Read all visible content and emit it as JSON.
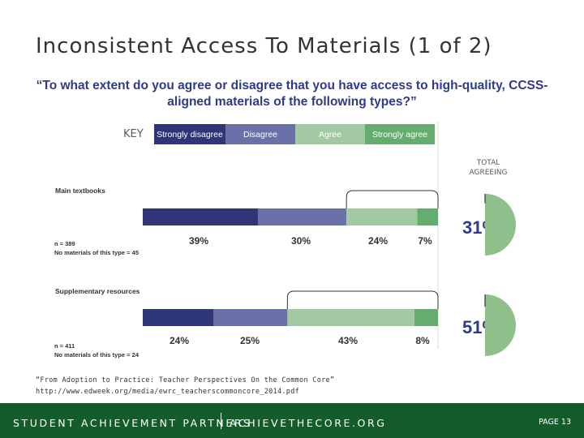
{
  "slide": {
    "title": "Inconsistent Access To Materials (1 of 2)",
    "question": "“To what extent do you agree or disagree that you have access to high-quality, CCSS-aligned materials of the following types?”",
    "key_label": "KEY",
    "total_label": "TOTAL AGREEING",
    "source_line1": "“From Adoption to Practice: Teacher Perspectives On the Common Core”",
    "source_line2": "http://www.edweek.org/media/ewrc_teacherscommoncore_2014.pdf",
    "footer_org": "STUDENT ACHIEVEMENT PARTNERS",
    "footer_site": "ACHIEVETHECORE.ORG",
    "page_label": "PAGE 13"
  },
  "colors": {
    "strongly_disagree": "#2e3678",
    "disagree": "#6a70a8",
    "agree": "#a3c9a3",
    "strongly_agree": "#64ad6e",
    "pie_fill": "#8fbf8a",
    "pie_rest": "#ffffff",
    "footer_bg": "#145d2b"
  },
  "chart_data": {
    "type": "bar",
    "orientation": "horizontal",
    "stacked": true,
    "title": "“To what extent do you agree or disagree that you have access to high-quality, CCSS-aligned materials of the following types?”",
    "legend_position": "top",
    "series_names": [
      "Strongly disagree",
      "Disagree",
      "Agree",
      "Strongly agree"
    ],
    "categories": [
      {
        "name": "Main textbooks",
        "values": [
          39,
          30,
          24,
          7
        ],
        "labels": [
          "39%",
          "30%",
          "24%",
          "7%"
        ],
        "n": "n = 389",
        "no_materials": "No materials of this type = 45",
        "total_agreeing": 31,
        "total_label": "31%"
      },
      {
        "name": "Supplementary resources",
        "values": [
          24,
          25,
          43,
          8
        ],
        "labels": [
          "24%",
          "25%",
          "43%",
          "8%"
        ],
        "n": "n = 411",
        "no_materials": "No materials of this type = 24",
        "total_agreeing": 51,
        "total_label": "51%"
      }
    ],
    "xlim": [
      0,
      100
    ]
  }
}
